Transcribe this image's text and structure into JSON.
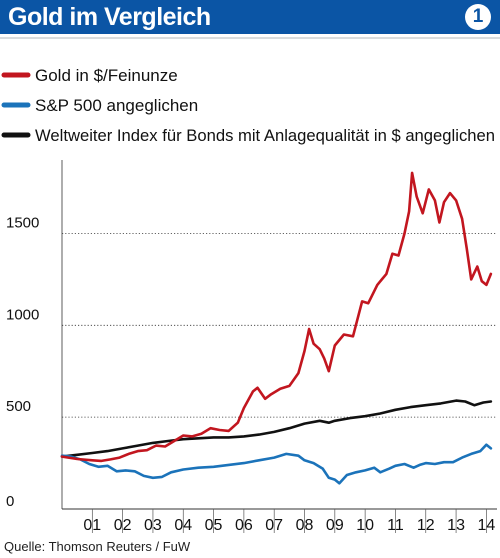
{
  "header": {
    "title": "Gold im Vergleich",
    "badge": "1"
  },
  "legend": [
    {
      "label": "Gold in $/Feinunze",
      "color": "#c2161f"
    },
    {
      "label": "S&P 500 angeglichen",
      "color": "#1b73ba"
    },
    {
      "label": "Weltweiter Index für Bonds mit Anlagequalität in $ angeglichen",
      "color": "#111111"
    }
  ],
  "source": "Quelle: Thomson Reuters / FuW",
  "chart_data": {
    "type": "line",
    "title": "Gold im Vergleich",
    "xlabel": "",
    "ylabel": "",
    "xlim": [
      2000.0,
      2014.35
    ],
    "ylim": [
      0,
      1900
    ],
    "yticks": [
      0,
      500,
      1000,
      1500
    ],
    "xtick_labels": [
      "01",
      "02",
      "03",
      "04",
      "05",
      "06",
      "07",
      "08",
      "09",
      "10",
      "11",
      "12",
      "13",
      "14"
    ],
    "grid": "horizontal dotted",
    "legend_position": "top-left",
    "series": [
      {
        "name": "Gold in $/Feinunze",
        "color": "#c2161f",
        "x": [
          2000.0,
          2000.5,
          2001.0,
          2001.3,
          2001.6,
          2001.9,
          2002.2,
          2002.5,
          2002.8,
          2003.1,
          2003.4,
          2003.7,
          2004.0,
          2004.3,
          2004.6,
          2004.9,
          2005.2,
          2005.5,
          2005.8,
          2006.0,
          2006.3,
          2006.45,
          2006.7,
          2006.9,
          2007.2,
          2007.5,
          2007.8,
          2008.0,
          2008.15,
          2008.3,
          2008.5,
          2008.65,
          2008.8,
          2009.0,
          2009.3,
          2009.6,
          2009.9,
          2010.1,
          2010.4,
          2010.7,
          2010.9,
          2011.1,
          2011.3,
          2011.45,
          2011.55,
          2011.7,
          2011.9,
          2012.1,
          2012.3,
          2012.45,
          2012.6,
          2012.8,
          2013.0,
          2013.2,
          2013.35,
          2013.5,
          2013.7,
          2013.85,
          2014.0,
          2014.15
        ],
        "values": [
          285,
          272,
          265,
          262,
          270,
          280,
          300,
          315,
          320,
          345,
          340,
          370,
          400,
          395,
          410,
          440,
          430,
          425,
          470,
          550,
          640,
          660,
          600,
          625,
          655,
          670,
          740,
          860,
          980,
          900,
          870,
          820,
          750,
          890,
          950,
          940,
          1130,
          1120,
          1220,
          1280,
          1390,
          1380,
          1500,
          1620,
          1830,
          1700,
          1610,
          1740,
          1680,
          1560,
          1670,
          1720,
          1680,
          1580,
          1420,
          1250,
          1320,
          1240,
          1220,
          1280
        ]
      },
      {
        "name": "S&P 500 angeglichen",
        "color": "#1b73ba",
        "x": [
          2000.0,
          2000.3,
          2000.6,
          2000.9,
          2001.2,
          2001.5,
          2001.8,
          2002.1,
          2002.4,
          2002.7,
          2003.0,
          2003.3,
          2003.6,
          2004.0,
          2004.5,
          2005.0,
          2005.5,
          2006.0,
          2006.5,
          2007.0,
          2007.4,
          2007.8,
          2008.0,
          2008.3,
          2008.6,
          2008.8,
          2009.0,
          2009.15,
          2009.4,
          2009.7,
          2010.0,
          2010.3,
          2010.5,
          2010.8,
          2011.0,
          2011.3,
          2011.6,
          2011.8,
          2012.0,
          2012.3,
          2012.6,
          2012.9,
          2013.2,
          2013.5,
          2013.8,
          2014.0,
          2014.15
        ],
        "values": [
          290,
          285,
          270,
          245,
          230,
          235,
          205,
          210,
          205,
          180,
          170,
          175,
          200,
          215,
          225,
          230,
          240,
          250,
          265,
          280,
          300,
          290,
          265,
          250,
          220,
          170,
          160,
          140,
          185,
          200,
          210,
          225,
          200,
          220,
          235,
          245,
          225,
          240,
          250,
          245,
          255,
          255,
          280,
          300,
          315,
          350,
          330
        ]
      },
      {
        "name": "Weltweiter Index für Bonds mit Anlagequalität in $ angeglichen",
        "color": "#111111",
        "x": [
          2000.0,
          2000.5,
          2001.0,
          2001.5,
          2002.0,
          2002.5,
          2003.0,
          2003.5,
          2004.0,
          2004.5,
          2005.0,
          2005.5,
          2006.0,
          2006.5,
          2007.0,
          2007.5,
          2008.0,
          2008.5,
          2008.8,
          2009.0,
          2009.5,
          2010.0,
          2010.5,
          2011.0,
          2011.5,
          2012.0,
          2012.5,
          2013.0,
          2013.3,
          2013.6,
          2013.9,
          2014.15
        ],
        "values": [
          285,
          295,
          305,
          315,
          330,
          345,
          360,
          370,
          380,
          385,
          390,
          390,
          395,
          405,
          420,
          440,
          465,
          480,
          470,
          480,
          495,
          505,
          520,
          540,
          555,
          565,
          575,
          590,
          585,
          565,
          580,
          585
        ]
      }
    ]
  }
}
